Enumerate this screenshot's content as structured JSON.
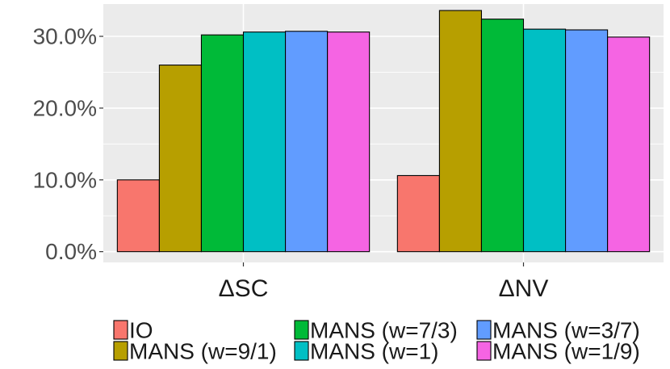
{
  "chart_data": {
    "type": "bar",
    "title": "",
    "xlabel": "",
    "ylabel": "",
    "categories": [
      "ΔSC",
      "ΔNV"
    ],
    "ylim": [
      -0.015,
      0.345
    ],
    "yticks": [
      0.0,
      0.1,
      0.2,
      0.3
    ],
    "ytick_labels": [
      "0.0%",
      "10.0%",
      "20.0%",
      "30.0%"
    ],
    "legend_position": "bottom",
    "grid": true,
    "series": [
      {
        "name": "IO",
        "color": "#F8766D",
        "values": [
          0.1,
          0.106
        ]
      },
      {
        "name": "MANS (w=9/1)",
        "color": "#B79F00",
        "values": [
          0.26,
          0.336
        ]
      },
      {
        "name": "MANS (w=7/3)",
        "color": "#00BA38",
        "values": [
          0.302,
          0.324
        ]
      },
      {
        "name": "MANS (w=1)",
        "color": "#00BFC4",
        "values": [
          0.306,
          0.31
        ]
      },
      {
        "name": "MANS (w=3/7)",
        "color": "#619CFF",
        "values": [
          0.307,
          0.309
        ]
      },
      {
        "name": "MANS (w=1/9)",
        "color": "#F564E3",
        "values": [
          0.306,
          0.299
        ]
      }
    ]
  }
}
